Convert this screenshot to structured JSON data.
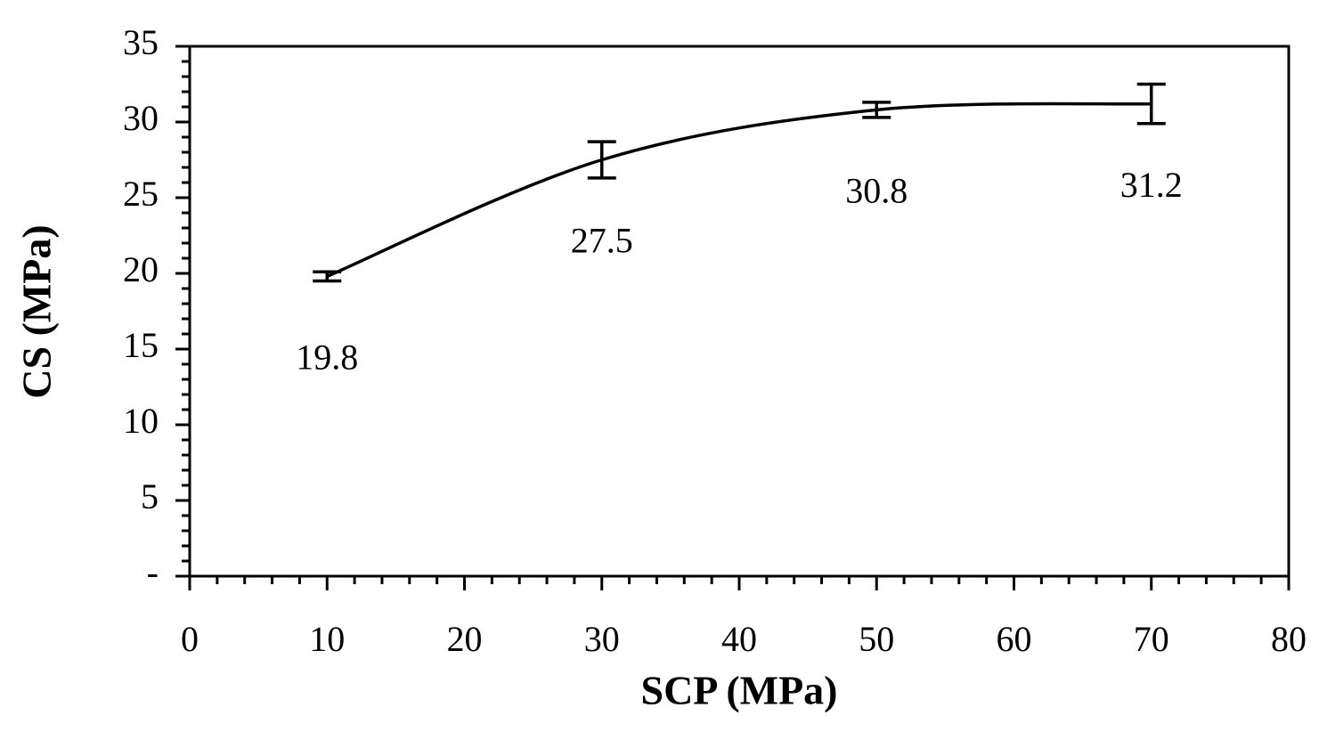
{
  "chart_data": {
    "type": "line",
    "x_label": "SCP (MPa)",
    "y_label": "CS (MPa)",
    "x": [
      10,
      30,
      50,
      70
    ],
    "values": [
      19.8,
      27.5,
      30.8,
      31.2
    ],
    "errors": [
      0.3,
      1.2,
      0.5,
      1.3
    ],
    "color": "#000000",
    "smooth": true,
    "xlim": [
      0,
      80
    ],
    "xticks": [
      0,
      10,
      20,
      30,
      40,
      50,
      60,
      70,
      80
    ],
    "ylim": [
      0,
      35
    ],
    "yticks": [
      {
        "value": 0,
        "label": "-"
      },
      5,
      10,
      15,
      20,
      25,
      30,
      35
    ]
  }
}
